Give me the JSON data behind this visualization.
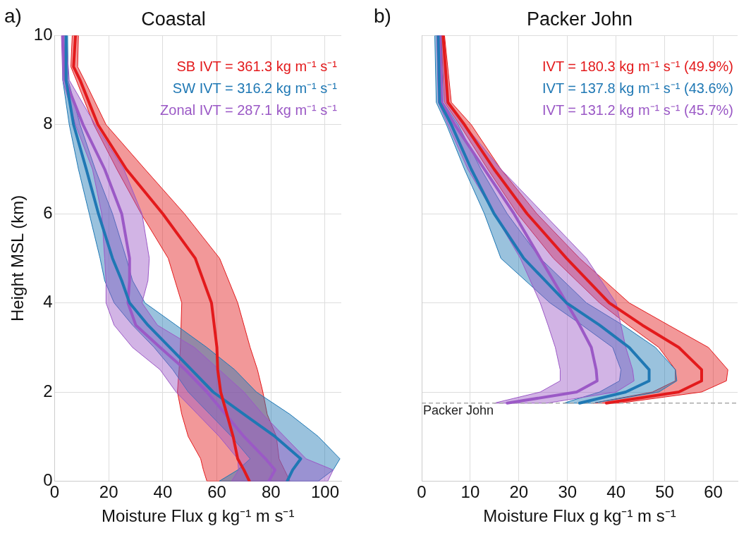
{
  "chart_data": [
    {
      "type": "line",
      "title": "Coastal",
      "orientation": "horizontal",
      "xlabel": "Moisture Flux g kg⁻¹ m s⁻¹",
      "ylabel": "Height MSL (km)",
      "annotations": [
        "a)"
      ],
      "xlim": [
        0,
        106
      ],
      "xticks": [
        0,
        20,
        40,
        60,
        80,
        100
      ],
      "ylim": [
        0,
        10
      ],
      "yticks": [
        0,
        2,
        4,
        6,
        8,
        10
      ],
      "grid": true,
      "legend": "top right",
      "marker": "none",
      "line_style": "solid",
      "series": [
        {
          "name": "SB IVT = 361.3 kg m⁻¹ s⁻¹",
          "color": "#e31a1c",
          "x": [
            10,
            9.3,
            9,
            8,
            7,
            6,
            5,
            4,
            3,
            2.5,
            2,
            1.5,
            1,
            0.5,
            0.25,
            0
          ],
          "values": [
            7.7,
            7,
            9.4,
            16,
            26.5,
            40,
            52,
            58,
            60,
            60.3,
            61.4,
            63.7,
            66,
            67.7,
            70,
            72
          ],
          "lower": [
            6.5,
            6,
            8,
            14.5,
            23,
            32,
            42,
            47,
            46.5,
            46,
            45.4,
            47,
            49.4,
            54,
            55,
            56.3
          ],
          "upper": [
            8.8,
            8.5,
            11,
            19,
            33.4,
            48,
            61,
            67.7,
            72.3,
            75,
            77,
            78.6,
            82,
            83,
            85,
            87
          ]
        },
        {
          "name": "SW IVT = 316.2 kg m⁻¹ s⁻¹",
          "color": "#1f78b4",
          "x": [
            10,
            9,
            8,
            7,
            6,
            5,
            4.5,
            4,
            3.5,
            3,
            2.5,
            2,
            1.5,
            1,
            0.5,
            0.25,
            0
          ],
          "values": [
            4.2,
            4.2,
            7,
            11.7,
            16.2,
            21.4,
            24.8,
            27.7,
            34.5,
            42.6,
            50.6,
            58.6,
            70,
            81.5,
            91,
            88,
            86
          ],
          "lower": [
            3,
            3,
            5.4,
            8.8,
            12.8,
            16.8,
            18.5,
            22,
            28.8,
            36.8,
            43.7,
            49.4,
            57.4,
            65.4,
            72.3,
            67.7,
            60.9
          ],
          "upper": [
            4.8,
            5,
            9.4,
            15,
            21.4,
            26.5,
            28.8,
            33.4,
            44.9,
            56.3,
            66.6,
            74.6,
            87,
            97.5,
            105.5,
            103,
            97.5
          ]
        },
        {
          "name": "Zonal IVT = 287.1 kg m⁻¹ s⁻¹",
          "color": "#9b59c6",
          "x": [
            10,
            9,
            8,
            7,
            6,
            5,
            4.5,
            4,
            3.5,
            3,
            2.5,
            2,
            1.5,
            1,
            0.5,
            0.25,
            0
          ],
          "values": [
            3,
            3.9,
            10.5,
            18.5,
            24.8,
            27.7,
            27.7,
            27.1,
            30,
            39,
            48.3,
            56.3,
            63.2,
            70,
            78,
            81.5,
            79.2
          ],
          "lower": [
            2.5,
            3,
            7.7,
            14,
            17.4,
            18.5,
            19,
            19,
            22,
            28.8,
            39,
            44.9,
            52.9,
            60.9,
            67.7,
            68,
            65.4
          ],
          "upper": [
            4.2,
            5.4,
            15,
            25.6,
            32.3,
            35,
            34.5,
            32.3,
            38,
            51.7,
            60.9,
            70,
            77,
            85,
            93,
            103,
            101
          ]
        }
      ]
    },
    {
      "type": "line",
      "title": "Packer John",
      "orientation": "horizontal",
      "xlabel": "Moisture Flux g kg⁻¹ m s⁻¹",
      "annotations": [
        "b)"
      ],
      "xlim": [
        0,
        65
      ],
      "xticks": [
        0,
        10,
        20,
        30,
        40,
        50,
        60
      ],
      "ylim": [
        0,
        10
      ],
      "yticks": [
        0,
        2,
        4,
        6,
        8,
        10
      ],
      "tick_labels": "x",
      "grid": true,
      "legend": "top right",
      "marker": "none",
      "line_style": "solid",
      "ref_lines": [
        {
          "axis": "y",
          "value": 1.75,
          "label": "Packer John",
          "color": "#aaaaaa",
          "line_style": "dashed"
        }
      ],
      "series": [
        {
          "name": "IVT = 180.3 kg m⁻¹ s⁻¹ (49.9%)",
          "color": "#e31a1c",
          "x": [
            10,
            8.5,
            8,
            7,
            6,
            5,
            4,
            3.5,
            3,
            2.5,
            2.25,
            2,
            1.75
          ],
          "values": [
            4.4,
            5.4,
            8.8,
            14.9,
            21.7,
            29.8,
            38.6,
            45.4,
            52.9,
            57.6,
            57.6,
            52.9,
            38
          ],
          "lower": [
            4,
            4.7,
            7.8,
            13.6,
            19.7,
            27.1,
            36.6,
            42.5,
            48.8,
            52.2,
            52.2,
            47.5,
            35.3
          ],
          "upper": [
            4.7,
            6.1,
            10.2,
            16.3,
            23.7,
            32.5,
            42.7,
            50.8,
            59,
            63,
            62.7,
            57.6,
            40.7
          ]
        },
        {
          "name": "IVT = 137.8 kg m⁻¹ s⁻¹ (43.6%)",
          "color": "#1f78b4",
          "x": [
            10,
            8.5,
            8,
            7,
            6,
            5,
            4,
            3.5,
            3,
            2.5,
            2.25,
            2,
            1.75
          ],
          "values": [
            3.4,
            3.7,
            6.1,
            10.2,
            14.9,
            21,
            29.8,
            36.6,
            42.7,
            46.8,
            46.8,
            42,
            32.5
          ],
          "lower": [
            2.7,
            3,
            5.1,
            8.8,
            12.9,
            16.3,
            26.4,
            33,
            39.3,
            41,
            40.7,
            36.6,
            29.2
          ],
          "upper": [
            4,
            4.4,
            7.5,
            12.2,
            17.6,
            24.4,
            33.9,
            41.4,
            48.1,
            52.2,
            52.5,
            48.8,
            35.3
          ]
        },
        {
          "name": "IVT = 131.2 kg m⁻¹ s⁻¹ (45.7%)",
          "color": "#9b59c6",
          "x": [
            10,
            8.5,
            8,
            7,
            6,
            5,
            4,
            3.5,
            3,
            2.5,
            2.25,
            2,
            1.75
          ],
          "values": [
            3.7,
            4.1,
            6.8,
            12.9,
            19,
            24.4,
            29.8,
            32.5,
            34.9,
            35.9,
            36.1,
            31.9,
            17.6
          ],
          "lower": [
            3.1,
            3.4,
            5.4,
            9.5,
            14.9,
            20.3,
            24.4,
            26,
            27.5,
            28.5,
            28.5,
            24.4,
            14.9
          ],
          "upper": [
            4.4,
            5.1,
            8.8,
            16.3,
            25.1,
            33.9,
            40,
            41,
            42,
            43.4,
            43.7,
            40,
            25.8
          ]
        }
      ]
    }
  ]
}
